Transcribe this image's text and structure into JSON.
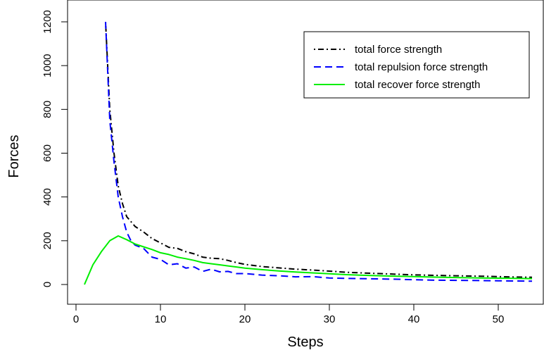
{
  "chart_data": {
    "type": "line",
    "title": "",
    "xlabel": "Steps",
    "ylabel": "Forces",
    "xlim": [
      0,
      54
    ],
    "ylim": [
      0,
      1200
    ],
    "xticks": [
      0,
      10,
      20,
      30,
      40,
      50
    ],
    "yticks": [
      0,
      200,
      400,
      600,
      800,
      1000,
      1200
    ],
    "xtick_labels": [
      "0",
      "10",
      "20",
      "30",
      "40",
      "50"
    ],
    "ytick_labels": [
      "0",
      "200",
      "400",
      "600",
      "800",
      "1000",
      "1200"
    ],
    "grid": false,
    "legend_position": "top-right",
    "series": [
      {
        "name": "total force strength",
        "color": "#000000",
        "style": "dotdash",
        "x": [
          3.5,
          4,
          4.5,
          5,
          5.5,
          6,
          7,
          8,
          9,
          10,
          11,
          12,
          13,
          14,
          15,
          16,
          17,
          18,
          19,
          20,
          22,
          24,
          26,
          28,
          30,
          32,
          35,
          38,
          40,
          42,
          45,
          48,
          50,
          52,
          54
        ],
        "y": [
          1200,
          800,
          600,
          450,
          370,
          310,
          265,
          240,
          210,
          190,
          170,
          165,
          150,
          140,
          125,
          120,
          118,
          110,
          100,
          92,
          82,
          76,
          70,
          66,
          61,
          56,
          51,
          47,
          44,
          42,
          40,
          38,
          36,
          34,
          33
        ]
      },
      {
        "name": "total repulsion force strength",
        "color": "#0000ff",
        "style": "dashed",
        "x": [
          3.5,
          4,
          4.5,
          5,
          5.5,
          6,
          6.5,
          7,
          8,
          9,
          10,
          11,
          12,
          13,
          14,
          15,
          16,
          17,
          18,
          19,
          20,
          22,
          24,
          26,
          28,
          30,
          32,
          35,
          38,
          40,
          42,
          45,
          48,
          50,
          52,
          54
        ],
        "y": [
          1200,
          750,
          560,
          400,
          310,
          240,
          200,
          180,
          165,
          125,
          115,
          90,
          95,
          75,
          80,
          60,
          70,
          58,
          60,
          50,
          50,
          43,
          40,
          35,
          36,
          30,
          28,
          26,
          24,
          22,
          20,
          19,
          18,
          17,
          16,
          15
        ]
      },
      {
        "name": "total recover force strength",
        "color": "#00ee00",
        "style": "solid",
        "x": [
          1,
          2,
          3,
          4,
          5,
          6,
          7,
          8,
          9,
          10,
          11,
          12,
          13,
          14,
          15,
          16,
          17,
          18,
          19,
          20,
          22,
          24,
          26,
          28,
          30,
          32,
          35,
          38,
          40,
          42,
          45,
          48,
          50,
          52,
          54
        ],
        "y": [
          0,
          90,
          150,
          200,
          222,
          205,
          185,
          172,
          160,
          145,
          137,
          125,
          118,
          110,
          100,
          95,
          90,
          85,
          80,
          75,
          68,
          62,
          57,
          53,
          49,
          45,
          41,
          38,
          36,
          34,
          32,
          30,
          29,
          28,
          27
        ]
      }
    ]
  }
}
